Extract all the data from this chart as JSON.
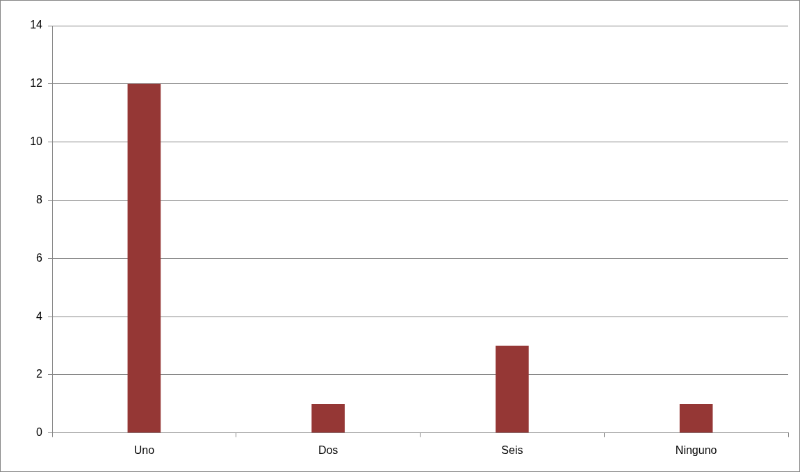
{
  "chart_data": {
    "type": "bar",
    "categories": [
      "Uno",
      "Dos",
      "Seis",
      "Ninguno"
    ],
    "values": [
      12,
      1,
      3,
      1
    ],
    "color": "#953735",
    "ylim": [
      0,
      14
    ],
    "yticks": [
      0,
      2,
      4,
      6,
      8,
      10,
      12,
      14
    ],
    "grid": "y",
    "legend": false
  }
}
